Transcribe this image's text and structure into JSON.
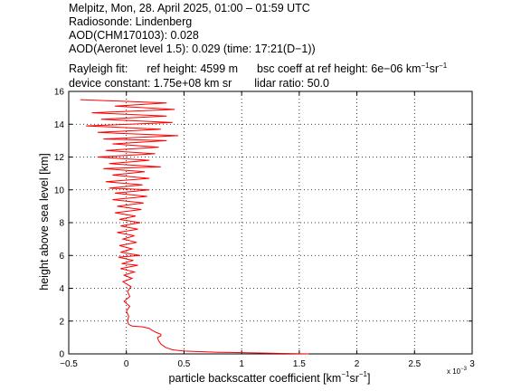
{
  "header": {
    "line1": "Melpitz, Mon, 28. April 2025, 01:00 – 01:59 UTC",
    "line2": "Radiosonde: Lindenberg",
    "line3": "AOD(CHM170103): 0.028",
    "line4": "AOD(Aeronet level 1.5): 0.029   (time: 17:21(D−1))",
    "rayleigh_label": "Rayleigh fit:",
    "ref_height": "ref height: 4599 m",
    "bsc_coeff_prefix": "bsc coeff at ref height: 6e−06 km",
    "bsc_coeff_exp1": "−1",
    "bsc_coeff_mid": "sr",
    "bsc_coeff_exp2": "−1",
    "device_constant": "device constant: 1.75e+08 km sr",
    "lidar_ratio": "lidar ratio: 50.0"
  },
  "chart_data": {
    "type": "line",
    "xlabel_prefix": "particle backscatter coefficient [km",
    "xlabel_exp1": "−1",
    "xlabel_mid": "sr",
    "xlabel_exp2": "−1",
    "xlabel_suffix": "]",
    "ylabel": "height above sea level [km]",
    "x_scale_note": "x 10",
    "x_scale_exp": "−3",
    "xlim": [
      -0.5,
      3
    ],
    "ylim": [
      0,
      16
    ],
    "xticks": [
      "−0.5",
      "0",
      "0.5",
      "1",
      "1.5",
      "2",
      "2.5",
      "3"
    ],
    "xtick_values": [
      -0.5,
      0,
      0.5,
      1,
      1.5,
      2,
      2.5,
      3
    ],
    "yticks": [
      "0",
      "2",
      "4",
      "6",
      "8",
      "10",
      "12",
      "14",
      "16"
    ],
    "ytick_values": [
      0,
      2,
      4,
      6,
      8,
      10,
      12,
      14,
      16
    ],
    "grid": true,
    "line_color": "#ff0000",
    "series": [
      {
        "profile": [
          [
            1.58,
            0.0
          ],
          [
            1.2,
            0.05
          ],
          [
            0.8,
            0.1
          ],
          [
            0.5,
            0.17
          ],
          [
            0.4,
            0.25
          ],
          [
            0.34,
            0.4
          ],
          [
            0.3,
            0.6
          ],
          [
            0.28,
            0.8
          ],
          [
            0.27,
            1.0
          ],
          [
            0.3,
            1.1
          ],
          [
            0.3,
            1.2
          ],
          [
            0.26,
            1.3
          ],
          [
            0.22,
            1.45
          ],
          [
            0.2,
            1.55
          ],
          [
            0.14,
            1.65
          ],
          [
            0.05,
            1.7
          ],
          [
            0.02,
            1.8
          ],
          [
            0.01,
            2.0
          ],
          [
            0.02,
            2.3
          ],
          [
            0.0,
            2.6
          ],
          [
            0.03,
            2.9
          ],
          [
            -0.02,
            3.2
          ],
          [
            0.03,
            3.5
          ],
          [
            0.01,
            3.8
          ],
          [
            0.04,
            4.1
          ],
          [
            -0.03,
            4.4
          ],
          [
            0.05,
            4.6
          ],
          [
            -0.02,
            4.8
          ],
          [
            0.07,
            5.0
          ],
          [
            -0.05,
            5.2
          ],
          [
            0.1,
            5.4
          ],
          [
            -0.04,
            5.5
          ],
          [
            0.06,
            5.7
          ],
          [
            -0.07,
            5.9
          ],
          [
            0.12,
            6.0
          ],
          [
            -0.05,
            6.2
          ],
          [
            0.05,
            6.4
          ],
          [
            -0.06,
            6.6
          ],
          [
            0.09,
            6.8
          ],
          [
            -0.03,
            7.0
          ],
          [
            0.07,
            7.2
          ],
          [
            -0.08,
            7.4
          ],
          [
            0.1,
            7.6
          ],
          [
            -0.05,
            7.8
          ],
          [
            0.12,
            8.0
          ],
          [
            -0.06,
            8.2
          ],
          [
            0.08,
            8.4
          ],
          [
            -0.1,
            8.6
          ],
          [
            0.13,
            8.8
          ],
          [
            -0.08,
            9.0
          ],
          [
            0.15,
            9.2
          ],
          [
            -0.12,
            9.4
          ],
          [
            0.18,
            9.6
          ],
          [
            -0.1,
            9.8
          ],
          [
            0.2,
            10.0
          ],
          [
            -0.15,
            10.1
          ],
          [
            0.14,
            10.3
          ],
          [
            -0.18,
            10.5
          ],
          [
            0.2,
            10.7
          ],
          [
            -0.12,
            10.9
          ],
          [
            0.16,
            11.1
          ],
          [
            -0.2,
            11.3
          ],
          [
            0.3,
            11.4
          ],
          [
            -0.15,
            11.6
          ],
          [
            0.2,
            11.8
          ],
          [
            -0.25,
            12.0
          ],
          [
            0.25,
            12.2
          ],
          [
            -0.18,
            12.4
          ],
          [
            0.28,
            12.6
          ],
          [
            -0.12,
            12.8
          ],
          [
            0.35,
            13.0
          ],
          [
            -0.2,
            13.1
          ],
          [
            0.45,
            13.3
          ],
          [
            -0.25,
            13.5
          ],
          [
            0.3,
            13.7
          ],
          [
            -0.35,
            13.9
          ],
          [
            0.4,
            14.1
          ],
          [
            -0.22,
            14.3
          ],
          [
            0.35,
            14.5
          ],
          [
            -0.3,
            14.7
          ],
          [
            0.42,
            14.9
          ],
          [
            -0.1,
            15.1
          ],
          [
            0.35,
            15.3
          ],
          [
            -0.4,
            15.5
          ]
        ]
      }
    ]
  }
}
